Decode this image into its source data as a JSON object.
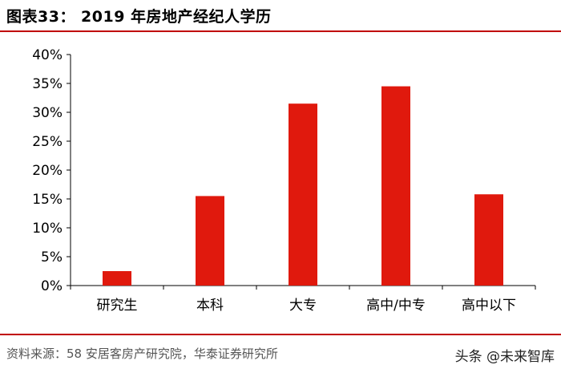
{
  "header": {
    "title": "图表33： 2019 年房地产经纪人学历"
  },
  "footer": {
    "source": "资料来源：58 安居客房产研究院，华泰证券研究所",
    "watermark": "头条 @未来智库"
  },
  "colors": {
    "bar": "#e0190d",
    "rule": "#c00000",
    "axis": "#000000"
  },
  "chart_data": {
    "type": "bar",
    "title": "2019 年房地产经纪人学历",
    "xlabel": "",
    "ylabel": "",
    "categories": [
      "研究生",
      "本科",
      "大专",
      "高中/中专",
      "高中以下"
    ],
    "values": [
      2.5,
      15.5,
      31.5,
      34.5,
      15.8
    ],
    "ylim": [
      0,
      40
    ],
    "yticks": [
      0,
      5,
      10,
      15,
      20,
      25,
      30,
      35,
      40
    ],
    "ytick_labels": [
      "0%",
      "5%",
      "10%",
      "15%",
      "20%",
      "25%",
      "30%",
      "35%",
      "40%"
    ],
    "grid": false,
    "legend": "none"
  }
}
